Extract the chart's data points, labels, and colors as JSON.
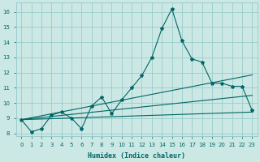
{
  "xlabel": "Humidex (Indice chaleur)",
  "x": [
    0,
    1,
    2,
    3,
    4,
    5,
    6,
    7,
    8,
    9,
    10,
    11,
    12,
    13,
    14,
    15,
    16,
    17,
    18,
    19,
    20,
    21,
    22,
    23
  ],
  "y_main": [
    8.9,
    8.1,
    8.3,
    9.2,
    9.4,
    9.0,
    8.3,
    9.8,
    10.4,
    9.3,
    10.2,
    11.0,
    11.8,
    13.0,
    14.9,
    16.2,
    14.1,
    12.9,
    12.7,
    11.3,
    11.3,
    11.1,
    11.1,
    9.5
  ],
  "trend_lines": [
    {
      "x0": 0,
      "y0": 8.9,
      "x1": 23,
      "y1": 11.85
    },
    {
      "x0": 0,
      "y0": 8.9,
      "x1": 23,
      "y1": 10.5
    },
    {
      "x0": 0,
      "y0": 8.9,
      "x1": 23,
      "y1": 9.4
    }
  ],
  "bg_color": "#cce8e4",
  "grid_color": "#99cccc",
  "line_color": "#006666",
  "xlim": [
    -0.5,
    23.5
  ],
  "ylim": [
    7.8,
    16.6
  ],
  "yticks": [
    8,
    9,
    10,
    11,
    12,
    13,
    14,
    15,
    16
  ],
  "xticks": [
    0,
    1,
    2,
    3,
    4,
    5,
    6,
    7,
    8,
    9,
    10,
    11,
    12,
    13,
    14,
    15,
    16,
    17,
    18,
    19,
    20,
    21,
    22,
    23
  ],
  "tick_fontsize": 5.0,
  "xlabel_fontsize": 6.0
}
